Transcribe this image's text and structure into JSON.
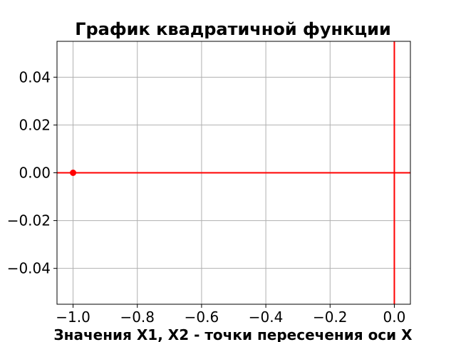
{
  "chart_data": {
    "type": "line",
    "title": "График квадратичной функции",
    "xlabel": "Значения X1, X2 - точки пересечения оси X",
    "ylabel": "",
    "xlim": [
      -1.05,
      0.05
    ],
    "ylim": [
      -0.055,
      0.055
    ],
    "xticks": [
      -1.0,
      -0.8,
      -0.6,
      -0.4,
      -0.2,
      0.0
    ],
    "xtick_labels": [
      "−1.0",
      "−0.8",
      "−0.6",
      "−0.4",
      "−0.2",
      "0.0"
    ],
    "yticks": [
      0.04,
      0.02,
      0.0,
      -0.02,
      -0.04
    ],
    "ytick_labels": [
      "0.04",
      "0.02",
      "0.00",
      "−0.02",
      "−0.04"
    ],
    "grid": true,
    "series": [
      {
        "kind": "horizontal-line",
        "y": 0,
        "color": "#ff0000"
      },
      {
        "kind": "vertical-line",
        "x": 0,
        "color": "#ff0000"
      },
      {
        "kind": "point",
        "x": -1.0,
        "y": 0.0,
        "color": "#ff0000"
      }
    ]
  }
}
